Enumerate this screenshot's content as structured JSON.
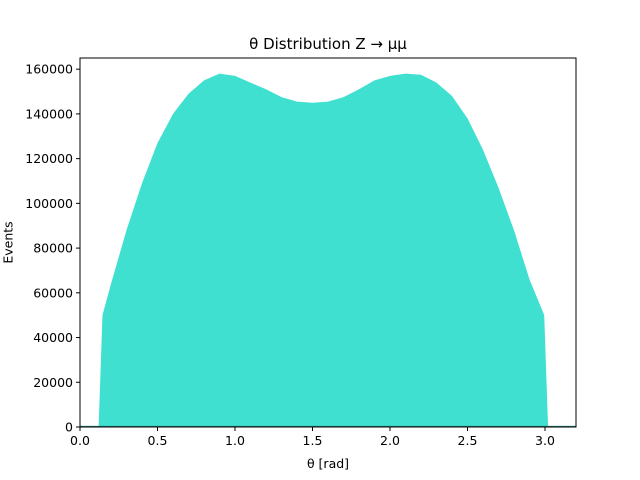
{
  "chart_data": {
    "type": "area",
    "title": "θ Distribution Z → μμ",
    "xlabel": "θ [rad]",
    "ylabel": "Events",
    "xlim": [
      0.0,
      3.2
    ],
    "ylim": [
      0,
      165000
    ],
    "xticks": [
      0.0,
      0.5,
      1.0,
      1.5,
      2.0,
      2.5,
      3.0
    ],
    "xtick_labels": [
      "0.0",
      "0.5",
      "1.0",
      "1.5",
      "2.0",
      "2.5",
      "3.0"
    ],
    "yticks": [
      0,
      20000,
      40000,
      60000,
      80000,
      100000,
      120000,
      140000,
      160000
    ],
    "ytick_labels": [
      "0",
      "20000",
      "40000",
      "60000",
      "80000",
      "100000",
      "120000",
      "140000",
      "160000"
    ],
    "grid": false,
    "fill_color": "#40e0d0",
    "series": [
      {
        "x": [
          0.12,
          0.145,
          0.2,
          0.3,
          0.4,
          0.5,
          0.6,
          0.7,
          0.8,
          0.9,
          1.0,
          1.1,
          1.2,
          1.3,
          1.4,
          1.5,
          1.6,
          1.7,
          1.8,
          1.9,
          2.0,
          2.1,
          2.2,
          2.3,
          2.4,
          2.5,
          2.6,
          2.7,
          2.8,
          2.9,
          2.995,
          3.02
        ],
        "y": [
          0,
          50000,
          64000,
          88000,
          109000,
          127000,
          140000,
          149000,
          155000,
          158000,
          157000,
          154000,
          151000,
          147500,
          145500,
          145000,
          145500,
          147500,
          151000,
          155000,
          157000,
          158000,
          157500,
          154000,
          148000,
          138000,
          124000,
          107000,
          88000,
          66000,
          50000,
          0
        ]
      }
    ]
  }
}
